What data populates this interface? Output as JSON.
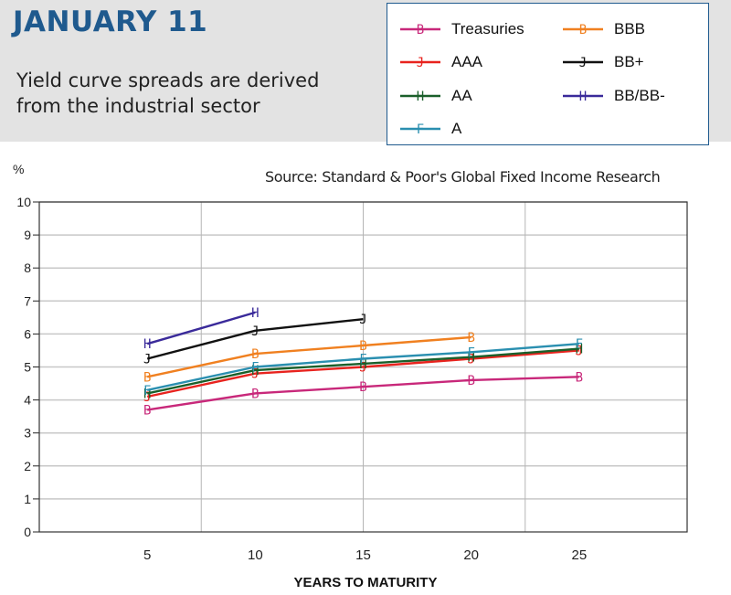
{
  "header": {
    "title": "JANUARY 11",
    "subtitle": "Yield curve spreads are derived from the industrial sector"
  },
  "source_note": "Source: Standard & Poor's Global Fixed Income Research",
  "colors": {
    "title": "#1f5a8e",
    "header_background": "#e3e3e3",
    "legend_border": "#1f5a8e",
    "grid": "#c8c8c8"
  },
  "chart_data": {
    "type": "line",
    "ylabel": "%",
    "xlabel": "YEARS TO MATURITY",
    "ylim": [
      0,
      10
    ],
    "y_ticks": [
      "0",
      "1",
      "2",
      "3",
      "4",
      "5",
      "6",
      "7",
      "8",
      "9",
      "10"
    ],
    "x_ticks": [
      "5",
      "10",
      "15",
      "20",
      "25"
    ],
    "grid": "horizontal",
    "legend_placement": "top-right",
    "series": [
      {
        "name": "Treasuries",
        "color": "#c8287a",
        "marker": "B",
        "x": [
          5,
          10,
          15,
          20,
          25
        ],
        "values": [
          3.7,
          4.2,
          4.4,
          4.6,
          4.7
        ]
      },
      {
        "name": "AAA",
        "color": "#e8231e",
        "marker": "J",
        "x": [
          5,
          10,
          15,
          20,
          25
        ],
        "values": [
          4.1,
          4.8,
          5.0,
          5.25,
          5.5
        ]
      },
      {
        "name": "AA",
        "color": "#1a5f2a",
        "marker": "H",
        "x": [
          5,
          10,
          15,
          20,
          25
        ],
        "values": [
          4.2,
          4.9,
          5.1,
          5.3,
          5.55
        ]
      },
      {
        "name": "A",
        "color": "#2a8fb0",
        "marker": "F",
        "x": [
          5,
          10,
          15,
          20,
          25
        ],
        "values": [
          4.3,
          5.0,
          5.25,
          5.45,
          5.7
        ]
      },
      {
        "name": "BBB",
        "color": "#f08020",
        "marker": "B",
        "x": [
          5,
          10,
          15,
          20
        ],
        "values": [
          4.7,
          5.4,
          5.65,
          5.9
        ]
      },
      {
        "name": "BB+",
        "color": "#111111",
        "marker": "J",
        "x": [
          5,
          10,
          15
        ],
        "values": [
          5.25,
          6.1,
          6.45
        ]
      },
      {
        "name": "BB/BB-",
        "color": "#3a2a9a",
        "marker": "H",
        "x": [
          5,
          10
        ],
        "values": [
          5.7,
          6.65
        ]
      }
    ]
  }
}
